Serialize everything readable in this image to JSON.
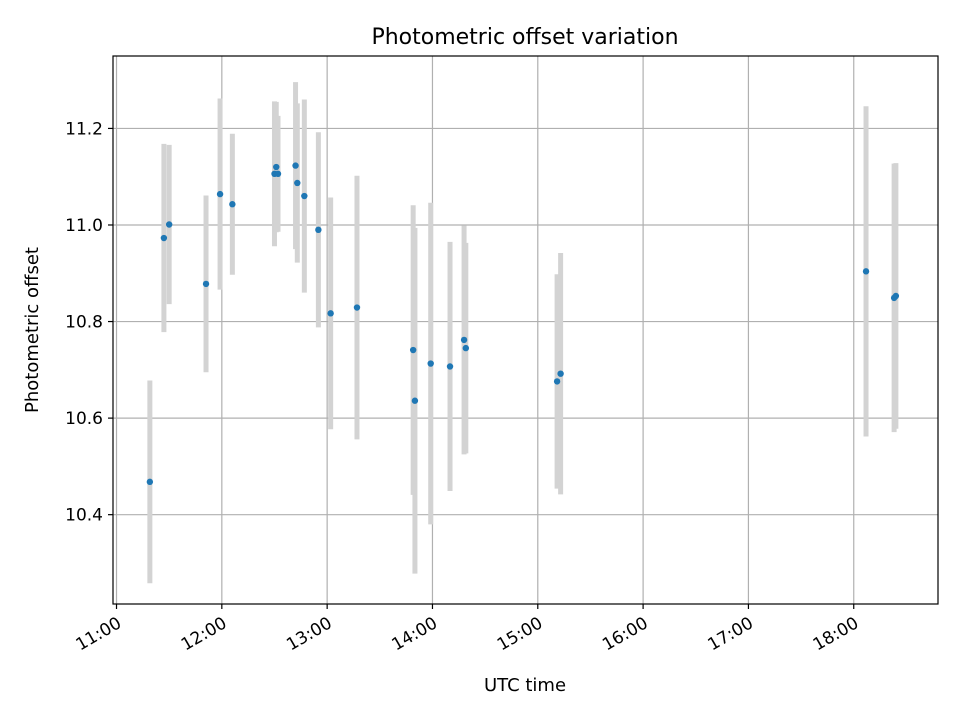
{
  "chart_data": {
    "type": "scatter",
    "title": "Photometric offset variation",
    "xlabel": "UTC time",
    "ylabel": "Photometric offset",
    "x_ticks": [
      "11:00",
      "12:00",
      "13:00",
      "14:00",
      "15:00",
      "16:00",
      "17:00",
      "18:00"
    ],
    "y_ticks": [
      "10.4",
      "10.6",
      "10.8",
      "11.0",
      "11.2"
    ],
    "xlim": [
      "10:58",
      "18:48"
    ],
    "ylim": [
      10.215,
      11.35
    ],
    "grid": true,
    "point_color": "#1f77b4",
    "errorbar_color": "#d3d3d3",
    "points": [
      {
        "x": "11:19",
        "y": 10.468,
        "err": 0.21
      },
      {
        "x": "11:27",
        "y": 10.973,
        "err": 0.195
      },
      {
        "x": "11:30",
        "y": 11.001,
        "err": 0.165
      },
      {
        "x": "11:51",
        "y": 10.878,
        "err": 0.183
      },
      {
        "x": "11:59",
        "y": 11.064,
        "err": 0.198
      },
      {
        "x": "12:06",
        "y": 11.043,
        "err": 0.146
      },
      {
        "x": "12:30",
        "y": 11.106,
        "err": 0.15
      },
      {
        "x": "12:31",
        "y": 11.12,
        "err": 0.135
      },
      {
        "x": "12:32",
        "y": 11.106,
        "err": 0.12
      },
      {
        "x": "12:42",
        "y": 11.123,
        "err": 0.173
      },
      {
        "x": "12:43",
        "y": 11.087,
        "err": 0.165
      },
      {
        "x": "12:47",
        "y": 11.06,
        "err": 0.2
      },
      {
        "x": "12:55",
        "y": 10.99,
        "err": 0.202
      },
      {
        "x": "13:02",
        "y": 10.817,
        "err": 0.24
      },
      {
        "x": "13:17",
        "y": 10.829,
        "err": 0.273
      },
      {
        "x": "13:49",
        "y": 10.741,
        "err": 0.3
      },
      {
        "x": "13:50",
        "y": 10.636,
        "err": 0.358
      },
      {
        "x": "13:59",
        "y": 10.713,
        "err": 0.333
      },
      {
        "x": "14:10",
        "y": 10.707,
        "err": 0.258
      },
      {
        "x": "14:18",
        "y": 10.762,
        "err": 0.237
      },
      {
        "x": "14:19",
        "y": 10.745,
        "err": 0.218
      },
      {
        "x": "15:11",
        "y": 10.676,
        "err": 0.222
      },
      {
        "x": "15:13",
        "y": 10.692,
        "err": 0.25
      },
      {
        "x": "18:07",
        "y": 10.904,
        "err": 0.342
      },
      {
        "x": "18:23",
        "y": 10.849,
        "err": 0.278
      },
      {
        "x": "18:24",
        "y": 10.853,
        "err": 0.275
      }
    ]
  }
}
